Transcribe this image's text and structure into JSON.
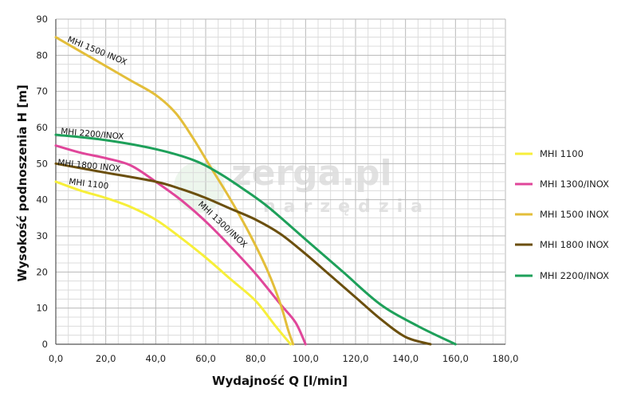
{
  "chart_data": {
    "type": "line",
    "xlabel": "Wydajność Q [l/min]",
    "ylabel": "Wysokość podnoszenia H [m]",
    "xlim": [
      0,
      180
    ],
    "ylim": [
      0,
      90
    ],
    "x_ticks": [
      "0,0",
      "20,0",
      "40,0",
      "60,0",
      "80,0",
      "100,0",
      "120,0",
      "140,0",
      "160,0",
      "180,0"
    ],
    "y_ticks": [
      "0",
      "10",
      "20",
      "30",
      "40",
      "50",
      "60",
      "70",
      "80",
      "90"
    ],
    "grid": true,
    "legend_position": "right",
    "series": [
      {
        "name": "MHI 1100",
        "label": "MHI 1100",
        "color": "#f7ef3a",
        "points": [
          [
            0,
            45
          ],
          [
            10,
            42.5
          ],
          [
            20,
            40.5
          ],
          [
            30,
            38
          ],
          [
            40,
            34.5
          ],
          [
            50,
            29.5
          ],
          [
            60,
            24
          ],
          [
            70,
            18
          ],
          [
            80,
            12
          ],
          [
            88,
            5
          ],
          [
            94,
            0
          ]
        ]
      },
      {
        "name": "MHI 1300/INOX",
        "label": "MHI 1300/INOX",
        "color": "#e0469a",
        "points": [
          [
            0,
            55
          ],
          [
            10,
            53
          ],
          [
            20,
            51.5
          ],
          [
            30,
            49.5
          ],
          [
            40,
            45
          ],
          [
            50,
            40
          ],
          [
            60,
            34
          ],
          [
            70,
            27
          ],
          [
            80,
            19.5
          ],
          [
            90,
            11
          ],
          [
            96,
            6
          ],
          [
            100,
            0
          ]
        ]
      },
      {
        "name": "MHI 1500 INOX",
        "label": "MHI 1500 INOX",
        "color": "#e3be3a",
        "points": [
          [
            0,
            85
          ],
          [
            10,
            81
          ],
          [
            20,
            77
          ],
          [
            30,
            73
          ],
          [
            40,
            69
          ],
          [
            48,
            64
          ],
          [
            55,
            57
          ],
          [
            62,
            49
          ],
          [
            70,
            40
          ],
          [
            78,
            30
          ],
          [
            85,
            20
          ],
          [
            90,
            11
          ],
          [
            93,
            4
          ],
          [
            95,
            0
          ]
        ]
      },
      {
        "name": "MHI 1800 INOX",
        "label": "MHI 1800 INOX",
        "color": "#6b4f0e",
        "points": [
          [
            0,
            50
          ],
          [
            20,
            47.5
          ],
          [
            40,
            45
          ],
          [
            50,
            43
          ],
          [
            60,
            40.5
          ],
          [
            70,
            37.5
          ],
          [
            80,
            34.5
          ],
          [
            90,
            30.5
          ],
          [
            100,
            25
          ],
          [
            110,
            19
          ],
          [
            120,
            13
          ],
          [
            130,
            7
          ],
          [
            140,
            2
          ],
          [
            150,
            0
          ]
        ]
      },
      {
        "name": "MHI 2200/INOX",
        "label": "MHI 2200/INOX",
        "color": "#1ea05a",
        "points": [
          [
            0,
            58
          ],
          [
            20,
            56.5
          ],
          [
            40,
            54
          ],
          [
            55,
            51
          ],
          [
            65,
            47.5
          ],
          [
            75,
            43
          ],
          [
            85,
            38
          ],
          [
            100,
            29
          ],
          [
            115,
            20
          ],
          [
            130,
            11
          ],
          [
            145,
            5
          ],
          [
            160,
            0
          ]
        ]
      }
    ]
  },
  "watermark": {
    "main": "zerga.pl",
    "sub": "narzędzia"
  }
}
